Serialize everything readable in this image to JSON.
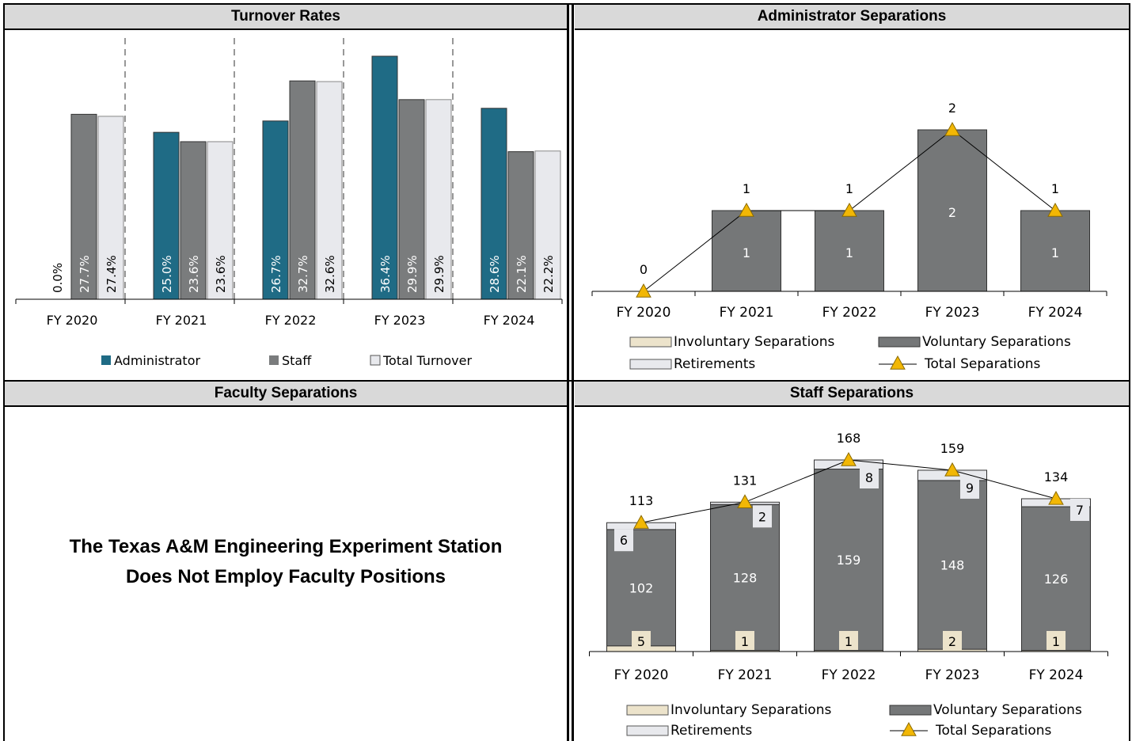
{
  "colors": {
    "admin": "#1f6b85",
    "staff": "#7a7c7d",
    "total": "#e8e9ed",
    "voluntary": "#757778",
    "involuntary": "#ece3cb",
    "retirements": "#e8e9ed",
    "marker": "#f2b705",
    "header_bg": "#d9d9d9"
  },
  "panels": {
    "turnover_title": "Turnover Rates",
    "admin_title": "Administrator Separations",
    "faculty_title": "Faculty Separations",
    "staff_title": "Staff Separations",
    "faculty_note_line1": "The Texas A&M Engineering Experiment Station",
    "faculty_note_line2": "Does Not Employ Faculty Positions"
  },
  "chart_data": [
    {
      "type": "bar",
      "title": "Turnover Rates",
      "categories": [
        "FY 2020",
        "FY 2021",
        "FY 2022",
        "FY 2023",
        "FY 2024"
      ],
      "series": [
        {
          "name": "Administrator",
          "values": [
            0.0,
            25.0,
            26.7,
            36.4,
            28.6
          ],
          "labels": [
            "0.0%",
            "25.0%",
            "26.7%",
            "36.4%",
            "28.6%"
          ]
        },
        {
          "name": "Staff",
          "values": [
            27.7,
            23.6,
            32.7,
            29.9,
            22.1
          ],
          "labels": [
            "27.7%",
            "23.6%",
            "32.7%",
            "29.9%",
            "22.1%"
          ]
        },
        {
          "name": "Total Turnover",
          "values": [
            27.4,
            23.6,
            32.6,
            29.9,
            22.2
          ],
          "labels": [
            "27.4%",
            "23.6%",
            "32.6%",
            "29.9%",
            "22.2%"
          ]
        }
      ],
      "legend": "bottom"
    },
    {
      "type": "bar",
      "title": "Administrator Separations",
      "categories": [
        "FY 2020",
        "FY 2021",
        "FY 2022",
        "FY 2023",
        "FY 2024"
      ],
      "series": [
        {
          "name": "Involuntary Separations",
          "values": [
            0,
            0,
            0,
            0,
            0
          ]
        },
        {
          "name": "Voluntary Separations",
          "values": [
            0,
            1,
            1,
            2,
            1
          ]
        },
        {
          "name": "Retirements",
          "values": [
            0,
            0,
            0,
            0,
            0
          ]
        },
        {
          "name": "Total Separations",
          "values": [
            0,
            1,
            1,
            2,
            1
          ],
          "line": true
        }
      ],
      "voluntary_labels": [
        "",
        "1",
        "1",
        "2",
        "1"
      ],
      "total_labels": [
        "0",
        "1",
        "1",
        "2",
        "1"
      ],
      "legend": "bottom"
    },
    {
      "type": "bar",
      "title": "Staff Separations",
      "categories": [
        "FY 2020",
        "FY 2021",
        "FY 2022",
        "FY 2023",
        "FY 2024"
      ],
      "series": [
        {
          "name": "Involuntary Separations",
          "values": [
            5,
            1,
            1,
            2,
            1
          ]
        },
        {
          "name": "Voluntary Separations",
          "values": [
            102,
            128,
            159,
            148,
            126
          ]
        },
        {
          "name": "Retirements",
          "values": [
            6,
            2,
            8,
            9,
            7
          ]
        },
        {
          "name": "Total Separations",
          "values": [
            113,
            131,
            168,
            159,
            134
          ],
          "line": true
        }
      ],
      "legend": "bottom"
    }
  ]
}
